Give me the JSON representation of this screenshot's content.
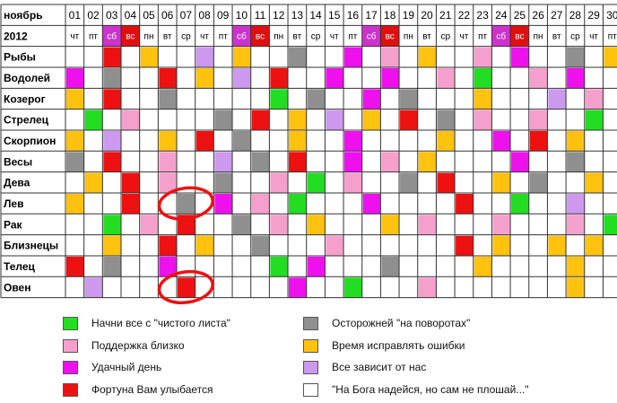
{
  "chart_data": {
    "type": "table",
    "title": "ноябрь",
    "year": "2012",
    "days": [
      "01",
      "02",
      "03",
      "04",
      "05",
      "06",
      "07",
      "08",
      "09",
      "10",
      "11",
      "12",
      "13",
      "14",
      "15",
      "16",
      "17",
      "18",
      "19",
      "20",
      "21",
      "22",
      "23",
      "24",
      "25",
      "26",
      "27",
      "28",
      "29",
      "30"
    ],
    "weekdays": [
      "чт",
      "пт",
      "сб",
      "вс",
      "пн",
      "вт",
      "ср",
      "чт",
      "пт",
      "сб",
      "вс",
      "пн",
      "вт",
      "ср",
      "чт",
      "пт",
      "сб",
      "вс",
      "пн",
      "вт",
      "ср",
      "чт",
      "пт",
      "сб",
      "вс",
      "пн",
      "вт",
      "ср",
      "чт",
      "пт"
    ],
    "signs": [
      "Рыбы",
      "Водолей",
      "Козерог",
      "Стрелец",
      "Скорпион",
      "Весы",
      "Дева",
      "Лев",
      "Рак",
      "Близнецы",
      "Телец",
      "Овен"
    ],
    "codes": {
      "G": "Начни все с \"чистого листа\"",
      "P": "Поддержка близко",
      "M": "Удачный день",
      "R": "Фортуна Вам улыбается",
      "D": "Осторожней \"на поворотах\"",
      "Y": "Время исправлять ошибки",
      "L": "Все зависит от нас",
      "W": "\"На Бога надейся, но сам не плошай...\""
    },
    "colors": {
      "G": "#22dd22",
      "P": "#f5a0cc",
      "M": "#ee11ee",
      "R": "#ee1111",
      "D": "#8f8f8f",
      "Y": "#ffc20e",
      "L": "#cc99ee",
      "W": "#ffffff",
      "weekend_header": "#cc33cc",
      "sunday_header": "#e01010",
      "highlight_circle": "#ee1111"
    },
    "rows": [
      "WWRWYWWLWYWWDWWMWPWYWWPWMWWDWY",
      "MWDWWRWYWLWRWWMWWMWWPWGWWPWMWW",
      "YWRWWDWWWWWGWDWWMWDWWWYWWWLWPW",
      "WGWPWWWWDWRWYWLWYWRWDWPWWPWWGW",
      "YWLWWYWRWDWWYWWMWWWWYWWMWRWYWW",
      "DWRWWPWWLWDWRWWMWPWYWWWWMWWDWW",
      "WYWRWPWWDWWPWGWPWWDWRWWYWDWWYW",
      "YWWRWWDWMWPWGWWWMWWWWRWWGWWLWW",
      "WWGWPWRWWDWPWYWWWYWPWWWPWWWPWG",
      "WWYWWRWYWWDWWWPWWWWWWRWYWWYWYW",
      "RWDWWMWWWWWGWMWWWDWWWWYWWWWYWW",
      "WLWWWWRWWWWWMWWGWWWPWWWWWWWYWW"
    ],
    "highlighted_cells": [
      {
        "sign": "Лев",
        "day": "07"
      },
      {
        "sign": "Овен",
        "day": "07"
      }
    ]
  },
  "legend": [
    {
      "code": "G",
      "label": "Начни все с \"чистого листа\""
    },
    {
      "code": "D",
      "label": "Осторожней \"на поворотах\""
    },
    {
      "code": "P",
      "label": "Поддержка близко"
    },
    {
      "code": "Y",
      "label": "Время исправлять ошибки"
    },
    {
      "code": "M",
      "label": "Удачный день"
    },
    {
      "code": "L",
      "label": "Все зависит от нас"
    },
    {
      "code": "R",
      "label": "Фортуна Вам улыбается"
    },
    {
      "code": "W",
      "label": "\"На Бога надейся, но сам не плошай...\""
    }
  ]
}
